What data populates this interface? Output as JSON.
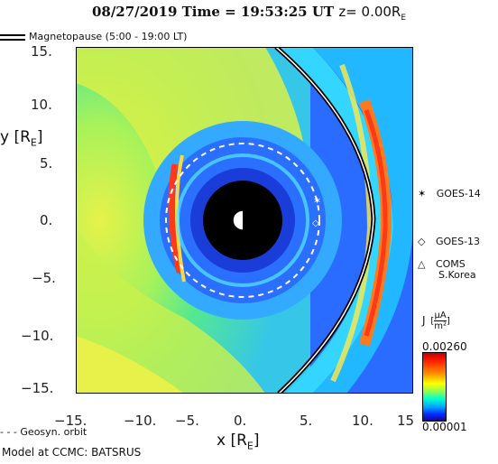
{
  "header": {
    "title_main": "08/27/2019 Time = 19:53:25 UT",
    "title_z": "z= 0.00R",
    "title_z_sub": "E"
  },
  "legend": {
    "magnetopause": "Magnetopause (5:00 - 19:00 LT)",
    "geosyn": "- - - Geosyn. orbit"
  },
  "axes": {
    "y_label": "y [R",
    "y_label_sub": "E",
    "y_label_end": "]",
    "x_label": "x [R",
    "x_label_sub": "E",
    "x_label_end": "]",
    "y_ticks": [
      "15.",
      "10.",
      "5.",
      "0.",
      "−5.",
      "−10.",
      "−15."
    ],
    "x_ticks": [
      "−15.",
      "−10.",
      "−5.",
      "0.",
      "5.",
      "10.",
      "15"
    ]
  },
  "satellites": [
    {
      "symbol": "✶",
      "label": "GOES-14"
    },
    {
      "symbol": "◇",
      "label": "GOES-13"
    },
    {
      "symbol": "△",
      "label": "COMS"
    },
    {
      "symbol": "",
      "label": "S.Korea"
    }
  ],
  "colorbar": {
    "title": "J",
    "unit_num": "μA",
    "unit_den": "m²",
    "max": "0.00260",
    "min": "0.00001"
  },
  "credit": "Model at CCMC: BATSRUS",
  "colors": {
    "bg_blue": "#2a66ff",
    "cyan": "#33d9ff",
    "green": "#66f07a",
    "yellow": "#e6f24a",
    "red": "#ff3a1a"
  }
}
